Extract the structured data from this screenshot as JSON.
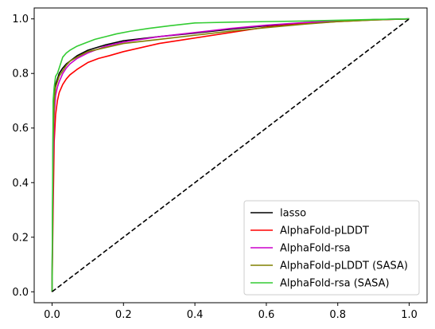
{
  "chart_data": {
    "type": "line",
    "title": "",
    "xlabel": "",
    "ylabel": "",
    "xlim": [
      -0.05,
      1.05
    ],
    "ylim": [
      -0.04,
      1.04
    ],
    "xticks": [
      0.0,
      0.2,
      0.4,
      0.6,
      0.8,
      1.0
    ],
    "xtick_labels": [
      "0.0",
      "0.2",
      "0.4",
      "0.6",
      "0.8",
      "1.0"
    ],
    "yticks": [
      0.0,
      0.2,
      0.4,
      0.6,
      0.8,
      1.0
    ],
    "ytick_labels": [
      "0.0",
      "0.2",
      "0.4",
      "0.6",
      "0.8",
      "1.0"
    ],
    "grid": false,
    "legend_position": "lower-right",
    "series": [
      {
        "name": "lasso",
        "color": "#000000",
        "x": [
          0.0,
          0.003,
          0.006,
          0.01,
          0.015,
          0.02,
          0.03,
          0.04,
          0.05,
          0.07,
          0.1,
          0.15,
          0.2,
          0.3,
          0.4,
          0.5,
          0.6,
          0.7,
          0.8,
          0.9,
          1.0
        ],
        "y": [
          0.0,
          0.6,
          0.72,
          0.76,
          0.78,
          0.8,
          0.82,
          0.835,
          0.845,
          0.865,
          0.885,
          0.905,
          0.92,
          0.935,
          0.948,
          0.962,
          0.975,
          0.985,
          0.992,
          0.997,
          1.0
        ]
      },
      {
        "name": "AlphaFold-pLDDT",
        "color": "#ff0000",
        "x": [
          0.0,
          0.003,
          0.006,
          0.01,
          0.015,
          0.02,
          0.03,
          0.04,
          0.05,
          0.07,
          0.1,
          0.13,
          0.16,
          0.2,
          0.25,
          0.3,
          0.4,
          0.5,
          0.6,
          0.7,
          0.8,
          0.9,
          1.0
        ],
        "y": [
          0.0,
          0.3,
          0.55,
          0.65,
          0.7,
          0.73,
          0.76,
          0.78,
          0.795,
          0.815,
          0.84,
          0.855,
          0.865,
          0.88,
          0.895,
          0.91,
          0.93,
          0.95,
          0.97,
          0.982,
          0.99,
          0.996,
          1.0
        ]
      },
      {
        "name": "AlphaFold-rsa",
        "color": "#cc00cc",
        "x": [
          0.0,
          0.003,
          0.006,
          0.01,
          0.015,
          0.02,
          0.03,
          0.04,
          0.05,
          0.07,
          0.1,
          0.15,
          0.2,
          0.3,
          0.4,
          0.5,
          0.6,
          0.7,
          0.8,
          0.9,
          1.0
        ],
        "y": [
          0.0,
          0.45,
          0.65,
          0.72,
          0.75,
          0.77,
          0.8,
          0.82,
          0.835,
          0.855,
          0.875,
          0.9,
          0.915,
          0.935,
          0.95,
          0.965,
          0.977,
          0.986,
          0.993,
          0.997,
          1.0
        ]
      },
      {
        "name": "AlphaFold-pLDDT (SASA)",
        "color": "#808000",
        "x": [
          0.0,
          0.003,
          0.006,
          0.01,
          0.015,
          0.02,
          0.03,
          0.04,
          0.05,
          0.07,
          0.1,
          0.15,
          0.2,
          0.3,
          0.4,
          0.5,
          0.6,
          0.7,
          0.8,
          0.9,
          1.0
        ],
        "y": [
          0.0,
          0.55,
          0.7,
          0.75,
          0.77,
          0.79,
          0.81,
          0.83,
          0.845,
          0.86,
          0.88,
          0.895,
          0.91,
          0.925,
          0.94,
          0.955,
          0.968,
          0.98,
          0.99,
          0.996,
          1.0
        ]
      },
      {
        "name": "AlphaFold-rsa (SASA)",
        "color": "#33cc33",
        "x": [
          0.0,
          0.003,
          0.006,
          0.01,
          0.015,
          0.02,
          0.03,
          0.04,
          0.05,
          0.07,
          0.09,
          0.12,
          0.15,
          0.18,
          0.22,
          0.27,
          0.33,
          0.4,
          0.5,
          0.6,
          0.7,
          0.8,
          0.9,
          1.0
        ],
        "y": [
          0.0,
          0.7,
          0.75,
          0.79,
          0.8,
          0.82,
          0.86,
          0.875,
          0.885,
          0.9,
          0.91,
          0.925,
          0.935,
          0.945,
          0.955,
          0.965,
          0.975,
          0.985,
          0.988,
          0.99,
          0.992,
          0.995,
          0.998,
          1.0
        ]
      },
      {
        "name": "",
        "color": "#000000",
        "dashed": true,
        "x": [
          0.0,
          1.0
        ],
        "y": [
          0.0,
          1.0
        ]
      }
    ]
  }
}
